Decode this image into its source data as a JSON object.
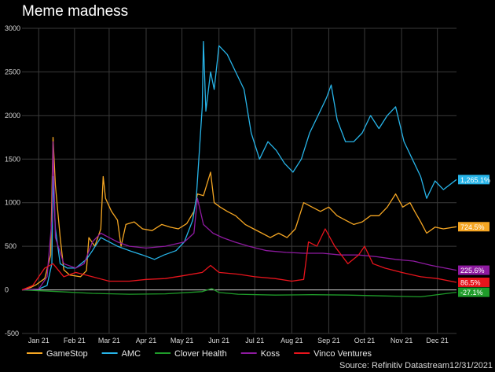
{
  "title": "Meme madness",
  "source": "Source: Refinitiv Datastream12/31/2021",
  "colors": {
    "background": "#000000",
    "grid": "#3a3a3a",
    "zero_line": "#cfcfcf",
    "tick_text": "#d8d8d8",
    "legend_text": "#e6e6e6"
  },
  "chart_data": {
    "type": "line",
    "ylim": [
      -500,
      3000
    ],
    "yticks": [
      -500,
      0,
      500,
      1000,
      1500,
      2000,
      2500,
      3000
    ],
    "xlim": [
      "2021-01-01",
      "2021-12-31"
    ],
    "xticks": [
      {
        "label": "Jan 21",
        "date": "2021-01-15"
      },
      {
        "label": "Feb 21",
        "date": "2021-02-14"
      },
      {
        "label": "Mar 21",
        "date": "2021-03-15"
      },
      {
        "label": "Apr 21",
        "date": "2021-04-15"
      },
      {
        "label": "May 21",
        "date": "2021-05-15"
      },
      {
        "label": "Jun 21",
        "date": "2021-06-15"
      },
      {
        "label": "Jul 21",
        "date": "2021-07-15"
      },
      {
        "label": "Aug 21",
        "date": "2021-08-15"
      },
      {
        "label": "Sep 21",
        "date": "2021-09-15"
      },
      {
        "label": "Oct 21",
        "date": "2021-10-15"
      },
      {
        "label": "Nov 21",
        "date": "2021-11-15"
      },
      {
        "label": "Dec 21",
        "date": "2021-12-15"
      }
    ],
    "grid": true,
    "legend_position": "bottom",
    "series": [
      {
        "name": "GameStop",
        "color": "#f5a623",
        "end_label": "724.5%",
        "points": [
          [
            "2021-01-01",
            0
          ],
          [
            "2021-01-08",
            25
          ],
          [
            "2021-01-13",
            60
          ],
          [
            "2021-01-20",
            130
          ],
          [
            "2021-01-25",
            400
          ],
          [
            "2021-01-27",
            1750
          ],
          [
            "2021-01-29",
            1200
          ],
          [
            "2021-02-02",
            600
          ],
          [
            "2021-02-05",
            230
          ],
          [
            "2021-02-10",
            170
          ],
          [
            "2021-02-19",
            150
          ],
          [
            "2021-02-24",
            220
          ],
          [
            "2021-02-26",
            600
          ],
          [
            "2021-03-03",
            500
          ],
          [
            "2021-03-08",
            700
          ],
          [
            "2021-03-10",
            1300
          ],
          [
            "2021-03-12",
            1050
          ],
          [
            "2021-03-17",
            900
          ],
          [
            "2021-03-22",
            800
          ],
          [
            "2021-03-25",
            500
          ],
          [
            "2021-03-29",
            750
          ],
          [
            "2021-04-05",
            780
          ],
          [
            "2021-04-12",
            700
          ],
          [
            "2021-04-20",
            680
          ],
          [
            "2021-04-28",
            750
          ],
          [
            "2021-05-05",
            720
          ],
          [
            "2021-05-12",
            700
          ],
          [
            "2021-05-19",
            760
          ],
          [
            "2021-05-25",
            900
          ],
          [
            "2021-05-28",
            1100
          ],
          [
            "2021-06-02",
            1080
          ],
          [
            "2021-06-08",
            1350
          ],
          [
            "2021-06-11",
            1000
          ],
          [
            "2021-06-16",
            950
          ],
          [
            "2021-06-22",
            900
          ],
          [
            "2021-06-29",
            850
          ],
          [
            "2021-07-07",
            750
          ],
          [
            "2021-07-14",
            700
          ],
          [
            "2021-07-21",
            650
          ],
          [
            "2021-07-28",
            600
          ],
          [
            "2021-08-04",
            650
          ],
          [
            "2021-08-11",
            600
          ],
          [
            "2021-08-18",
            700
          ],
          [
            "2021-08-25",
            1000
          ],
          [
            "2021-09-01",
            950
          ],
          [
            "2021-09-08",
            900
          ],
          [
            "2021-09-15",
            950
          ],
          [
            "2021-09-22",
            850
          ],
          [
            "2021-09-29",
            800
          ],
          [
            "2021-10-06",
            750
          ],
          [
            "2021-10-13",
            780
          ],
          [
            "2021-10-20",
            850
          ],
          [
            "2021-10-27",
            850
          ],
          [
            "2021-11-03",
            950
          ],
          [
            "2021-11-10",
            1100
          ],
          [
            "2021-11-16",
            950
          ],
          [
            "2021-11-22",
            1000
          ],
          [
            "2021-11-26",
            900
          ],
          [
            "2021-12-01",
            780
          ],
          [
            "2021-12-06",
            650
          ],
          [
            "2021-12-13",
            720
          ],
          [
            "2021-12-20",
            700
          ],
          [
            "2021-12-31",
            724.5
          ]
        ]
      },
      {
        "name": "AMC",
        "color": "#27b4e8",
        "end_label": "1,265.1%",
        "points": [
          [
            "2021-01-01",
            0
          ],
          [
            "2021-01-15",
            10
          ],
          [
            "2021-01-22",
            50
          ],
          [
            "2021-01-26",
            300
          ],
          [
            "2021-01-27",
            1300
          ],
          [
            "2021-01-29",
            700
          ],
          [
            "2021-02-02",
            300
          ],
          [
            "2021-02-08",
            250
          ],
          [
            "2021-02-15",
            250
          ],
          [
            "2021-02-24",
            350
          ],
          [
            "2021-03-01",
            450
          ],
          [
            "2021-03-08",
            600
          ],
          [
            "2021-03-15",
            550
          ],
          [
            "2021-03-22",
            500
          ],
          [
            "2021-04-01",
            450
          ],
          [
            "2021-04-12",
            400
          ],
          [
            "2021-04-22",
            350
          ],
          [
            "2021-04-30",
            400
          ],
          [
            "2021-05-10",
            450
          ],
          [
            "2021-05-17",
            550
          ],
          [
            "2021-05-24",
            800
          ],
          [
            "2021-05-27",
            1050
          ],
          [
            "2021-06-01",
            2100
          ],
          [
            "2021-06-02",
            2850
          ],
          [
            "2021-06-04",
            2050
          ],
          [
            "2021-06-08",
            2500
          ],
          [
            "2021-06-11",
            2300
          ],
          [
            "2021-06-15",
            2800
          ],
          [
            "2021-06-22",
            2700
          ],
          [
            "2021-06-29",
            2500
          ],
          [
            "2021-07-06",
            2300
          ],
          [
            "2021-07-12",
            1800
          ],
          [
            "2021-07-19",
            1500
          ],
          [
            "2021-07-26",
            1700
          ],
          [
            "2021-08-02",
            1600
          ],
          [
            "2021-08-09",
            1450
          ],
          [
            "2021-08-16",
            1350
          ],
          [
            "2021-08-23",
            1500
          ],
          [
            "2021-08-30",
            1800
          ],
          [
            "2021-09-06",
            2000
          ],
          [
            "2021-09-13",
            2200
          ],
          [
            "2021-09-17",
            2350
          ],
          [
            "2021-09-22",
            1950
          ],
          [
            "2021-09-29",
            1700
          ],
          [
            "2021-10-06",
            1700
          ],
          [
            "2021-10-13",
            1800
          ],
          [
            "2021-10-20",
            2000
          ],
          [
            "2021-10-27",
            1850
          ],
          [
            "2021-11-03",
            2000
          ],
          [
            "2021-11-10",
            2100
          ],
          [
            "2021-11-17",
            1700
          ],
          [
            "2021-11-24",
            1500
          ],
          [
            "2021-12-01",
            1300
          ],
          [
            "2021-12-06",
            1050
          ],
          [
            "2021-12-13",
            1250
          ],
          [
            "2021-12-20",
            1150
          ],
          [
            "2021-12-31",
            1265.1
          ]
        ]
      },
      {
        "name": "Clover Health",
        "color": "#1f9c2a",
        "end_label": "-27.1%",
        "points": [
          [
            "2021-01-01",
            0
          ],
          [
            "2021-02-01",
            -20
          ],
          [
            "2021-03-01",
            -40
          ],
          [
            "2021-04-01",
            -50
          ],
          [
            "2021-05-01",
            -45
          ],
          [
            "2021-06-01",
            -20
          ],
          [
            "2021-06-09",
            15
          ],
          [
            "2021-06-15",
            -30
          ],
          [
            "2021-07-01",
            -50
          ],
          [
            "2021-08-01",
            -60
          ],
          [
            "2021-09-01",
            -55
          ],
          [
            "2021-10-01",
            -60
          ],
          [
            "2021-11-01",
            -70
          ],
          [
            "2021-12-01",
            -80
          ],
          [
            "2021-12-31",
            -27.1
          ]
        ]
      },
      {
        "name": "Koss",
        "color": "#8e1aa0",
        "end_label": "225.6%",
        "points": [
          [
            "2021-01-01",
            0
          ],
          [
            "2021-01-15",
            10
          ],
          [
            "2021-01-22",
            150
          ],
          [
            "2021-01-26",
            800
          ],
          [
            "2021-01-27",
            1700
          ],
          [
            "2021-01-29",
            600
          ],
          [
            "2021-02-05",
            300
          ],
          [
            "2021-02-15",
            250
          ],
          [
            "2021-02-22",
            300
          ],
          [
            "2021-03-01",
            550
          ],
          [
            "2021-03-08",
            650
          ],
          [
            "2021-03-15",
            600
          ],
          [
            "2021-03-22",
            550
          ],
          [
            "2021-04-01",
            500
          ],
          [
            "2021-04-15",
            480
          ],
          [
            "2021-05-01",
            500
          ],
          [
            "2021-05-17",
            550
          ],
          [
            "2021-05-25",
            650
          ],
          [
            "2021-05-28",
            1050
          ],
          [
            "2021-06-02",
            750
          ],
          [
            "2021-06-10",
            650
          ],
          [
            "2021-06-18",
            600
          ],
          [
            "2021-06-28",
            550
          ],
          [
            "2021-07-10",
            500
          ],
          [
            "2021-07-25",
            450
          ],
          [
            "2021-08-10",
            430
          ],
          [
            "2021-08-25",
            420
          ],
          [
            "2021-09-10",
            420
          ],
          [
            "2021-09-25",
            400
          ],
          [
            "2021-10-10",
            400
          ],
          [
            "2021-10-25",
            380
          ],
          [
            "2021-11-10",
            350
          ],
          [
            "2021-11-25",
            330
          ],
          [
            "2021-12-10",
            280
          ],
          [
            "2021-12-31",
            225.6
          ]
        ]
      },
      {
        "name": "Vinco Ventures",
        "color": "#e8141c",
        "end_label": "86.5%",
        "points": [
          [
            "2021-01-01",
            0
          ],
          [
            "2021-01-10",
            50
          ],
          [
            "2021-01-20",
            250
          ],
          [
            "2021-01-27",
            300
          ],
          [
            "2021-02-05",
            150
          ],
          [
            "2021-02-15",
            200
          ],
          [
            "2021-03-01",
            150
          ],
          [
            "2021-03-15",
            100
          ],
          [
            "2021-04-01",
            100
          ],
          [
            "2021-04-15",
            120
          ],
          [
            "2021-05-01",
            130
          ],
          [
            "2021-05-15",
            160
          ],
          [
            "2021-06-01",
            200
          ],
          [
            "2021-06-08",
            280
          ],
          [
            "2021-06-15",
            200
          ],
          [
            "2021-07-01",
            180
          ],
          [
            "2021-07-15",
            150
          ],
          [
            "2021-08-01",
            130
          ],
          [
            "2021-08-15",
            100
          ],
          [
            "2021-08-25",
            120
          ],
          [
            "2021-08-29",
            550
          ],
          [
            "2021-09-05",
            500
          ],
          [
            "2021-09-12",
            700
          ],
          [
            "2021-09-20",
            500
          ],
          [
            "2021-10-01",
            300
          ],
          [
            "2021-10-10",
            400
          ],
          [
            "2021-10-15",
            500
          ],
          [
            "2021-10-22",
            300
          ],
          [
            "2021-11-01",
            250
          ],
          [
            "2021-11-15",
            200
          ],
          [
            "2021-12-01",
            150
          ],
          [
            "2021-12-15",
            130
          ],
          [
            "2021-12-31",
            86.5
          ]
        ]
      }
    ]
  }
}
